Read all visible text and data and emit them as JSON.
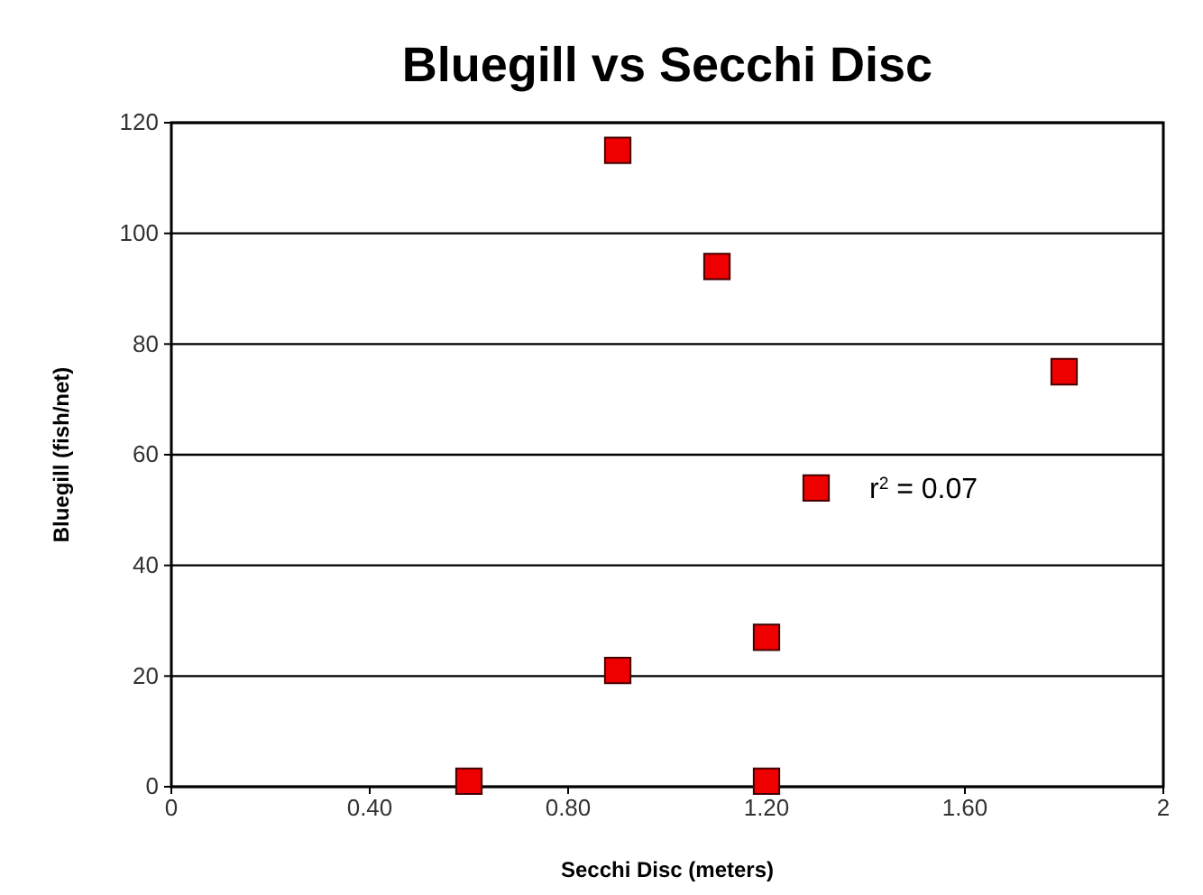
{
  "chart_data": {
    "type": "scatter",
    "title": "Bluegill vs Secchi Disc",
    "xlabel": "Secchi Disc (meters)",
    "ylabel": "Bluegill (fish/net)",
    "x": [
      0.6,
      0.9,
      0.9,
      1.1,
      1.2,
      1.2,
      1.3,
      1.8
    ],
    "values": [
      1,
      115,
      21,
      94,
      27,
      1,
      54,
      75
    ],
    "color": "#ee0000",
    "marker": "square",
    "xlim": [
      0,
      2
    ],
    "xticks": [
      0,
      {
        "value": 0.4,
        "label": "0.40"
      },
      {
        "value": 0.8,
        "label": "0.80"
      },
      {
        "value": 1.2,
        "label": "1.20"
      },
      {
        "value": 1.6,
        "label": "1.60"
      },
      2
    ],
    "ylim": [
      0,
      120
    ],
    "yticks": [
      0,
      20,
      40,
      60,
      80,
      100,
      120
    ],
    "grid": "y",
    "annotations": [
      "r$^{2}$ = 0.07"
    ]
  }
}
